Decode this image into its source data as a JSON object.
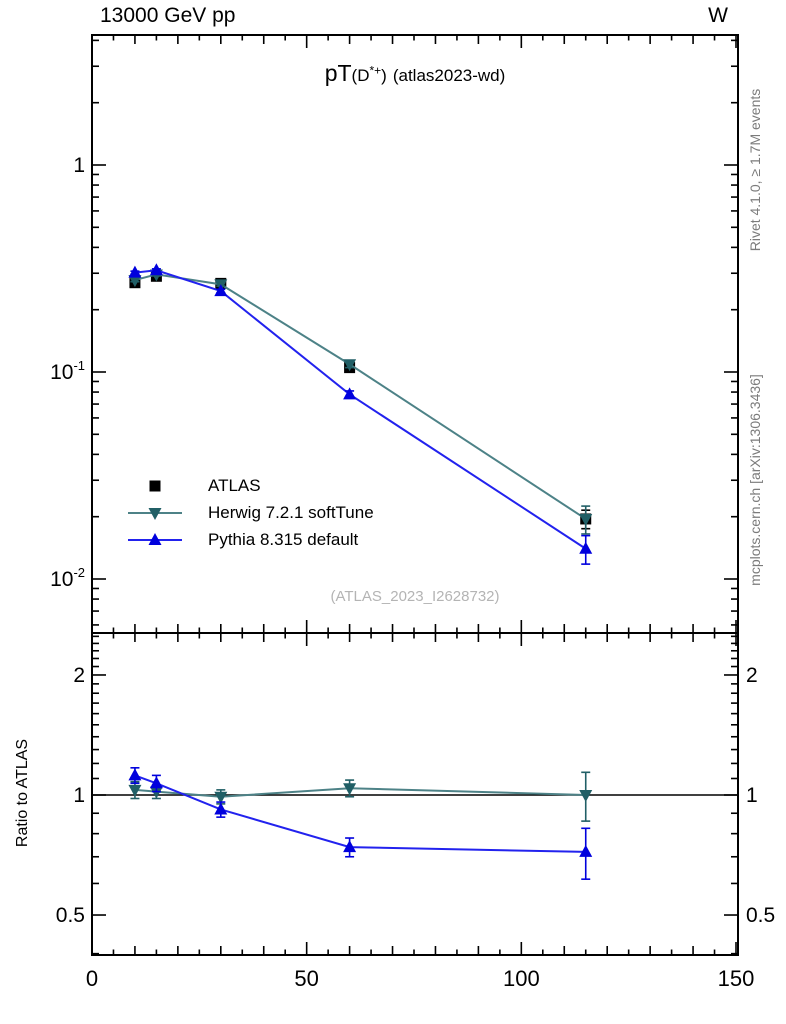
{
  "header": {
    "beam": "13000 GeV pp",
    "process": "W"
  },
  "side_notes": {
    "generator": "Rivet 4.1.0, ≥ 1.7M events",
    "site": "mcplots.cern.ch [arXiv:1306.3436]"
  },
  "title": {
    "prefix": "pT",
    "obs_open": "(D",
    "obs_sup": "*+",
    "obs_close": ")",
    "suffix": "(atlas2023-wd)"
  },
  "watermark": "(ATLAS_2023_I2628732)",
  "ratio_ylabel": "Ratio to ATLAS",
  "colors": {
    "atlas": "#000000",
    "herwig_marker": "#215f66",
    "herwig_line": "#4d8287",
    "pythia_marker": "#0000dd",
    "pythia_line": "#2222ee",
    "gray_note": "#7b7b7b",
    "watermark": "#b4b4b4"
  },
  "legend": [
    {
      "label": "ATLAS",
      "marker": "square",
      "color": "#000000",
      "line": false,
      "line_color": "#000000"
    },
    {
      "label": "Herwig 7.2.1 softTune",
      "marker": "triangle-down",
      "color": "#215f66",
      "line": true,
      "line_color": "#4d8287"
    },
    {
      "label": "Pythia 8.315 default",
      "marker": "triangle-up",
      "color": "#0000dd",
      "line": true,
      "line_color": "#2222ee"
    }
  ],
  "chart_data": [
    {
      "type": "line",
      "title": "pT(D*+) (atlas2023-wd)",
      "xlabel": "",
      "ylabel": "",
      "xlim": [
        0,
        150
      ],
      "ylog": true,
      "ylim": [
        0.0057,
        4.25
      ],
      "x": [
        10,
        15,
        30,
        60,
        115
      ],
      "xticks": [
        {
          "v": 0,
          "label": "0"
        },
        {
          "v": 50,
          "label": "50"
        },
        {
          "v": 100,
          "label": "100"
        },
        {
          "v": 150,
          "label": "150"
        }
      ],
      "yticks": [
        {
          "v": 1,
          "mant": "1",
          "exp": ""
        },
        {
          "v": 0.1,
          "mant": "10",
          "exp": "-1"
        },
        {
          "v": 0.01,
          "mant": "10",
          "exp": "-2"
        }
      ],
      "series": [
        {
          "name": "ATLAS",
          "marker": "square",
          "color": "#000000",
          "line": false,
          "line_color": "#000000",
          "values": [
            0.27,
            0.29,
            0.268,
            0.105,
            0.0195
          ],
          "errors": [
            0.008,
            0.008,
            0.008,
            0.005,
            0.002
          ]
        },
        {
          "name": "Herwig 7.2.1 softTune",
          "marker": "triangle-down",
          "color": "#215f66",
          "line": true,
          "line_color": "#4d8287",
          "values": [
            0.278,
            0.296,
            0.265,
            0.109,
            0.0195
          ],
          "errors": [
            0.005,
            0.005,
            0.005,
            0.004,
            0.003
          ]
        },
        {
          "name": "Pythia 8.315 default",
          "marker": "triangle-up",
          "color": "#0000dd",
          "line": true,
          "line_color": "#2222ee",
          "values": [
            0.302,
            0.31,
            0.246,
            0.078,
            0.014
          ],
          "errors": [
            0.005,
            0.005,
            0.005,
            0.003,
            0.0022
          ]
        }
      ]
    },
    {
      "type": "line",
      "title": "",
      "ylabel": "Ratio to ATLAS",
      "xlim": [
        0,
        150
      ],
      "ylog": true,
      "ylim": [
        0.397,
        2.55
      ],
      "ref_line": 1,
      "x": [
        10,
        15,
        30,
        60,
        115
      ],
      "xticks": [
        {
          "v": 0,
          "label": "0"
        },
        {
          "v": 50,
          "label": "50"
        },
        {
          "v": 100,
          "label": "100"
        },
        {
          "v": 150,
          "label": "150"
        }
      ],
      "yticks": [
        {
          "v": 0.5,
          "label": "0.5"
        },
        {
          "v": 1,
          "label": "1"
        },
        {
          "v": 2,
          "label": "2"
        }
      ],
      "series": [
        {
          "name": "Herwig 7.2.1 softTune",
          "marker": "triangle-down",
          "color": "#215f66",
          "line": true,
          "line_color": "#4d8287",
          "values": [
            1.03,
            1.02,
            0.99,
            1.04,
            1.0
          ],
          "errors": [
            0.05,
            0.04,
            0.04,
            0.05,
            0.14
          ]
        },
        {
          "name": "Pythia 8.315 default",
          "marker": "triangle-up",
          "color": "#0000dd",
          "line": true,
          "line_color": "#2222ee",
          "values": [
            1.12,
            1.07,
            0.92,
            0.74,
            0.72
          ],
          "errors": [
            0.05,
            0.05,
            0.04,
            0.04,
            0.105
          ]
        }
      ]
    }
  ]
}
